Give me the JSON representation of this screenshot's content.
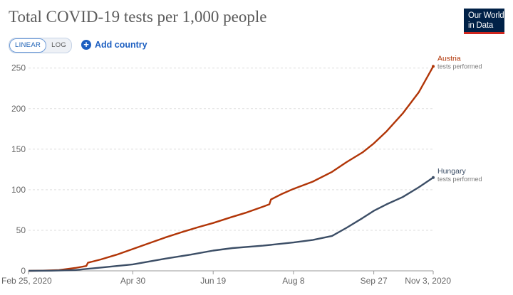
{
  "header": {
    "title": "Total COVID-19 tests per 1,000 people",
    "logo_line1": "Our World",
    "logo_line2": "in Data"
  },
  "controls": {
    "linear_label": "LINEAR",
    "log_label": "LOG",
    "add_country_label": "Add country"
  },
  "colors": {
    "austria": "#b13507",
    "hungary": "#3c4e66",
    "grid": "#dddddd",
    "axis": "#999999"
  },
  "chart_data": {
    "type": "line",
    "title": "Total COVID-19 tests per 1,000 people",
    "x_tick_labels": [
      "Feb 25, 2020",
      "Apr 30",
      "Jun 19",
      "Aug 8",
      "Sep 27",
      "Nov 3, 2020"
    ],
    "x_tick_dates": [
      "2020-02-25",
      "2020-04-30",
      "2020-06-19",
      "2020-08-08",
      "2020-09-27",
      "2020-11-03"
    ],
    "xlim": [
      "2020-02-25",
      "2020-11-03"
    ],
    "y_ticks": [
      0,
      50,
      100,
      150,
      200,
      250
    ],
    "ylim": [
      0,
      255
    ],
    "grid": "horizontal dashed",
    "legend": "end-of-line labels",
    "series": [
      {
        "name": "Austria",
        "sublabel": "tests performed",
        "color": "#b13507",
        "points": [
          [
            "2020-02-25",
            0
          ],
          [
            "2020-03-05",
            0.3
          ],
          [
            "2020-03-15",
            1
          ],
          [
            "2020-03-25",
            3.5
          ],
          [
            "2020-04-01",
            6
          ],
          [
            "2020-04-02",
            10
          ],
          [
            "2020-04-10",
            14
          ],
          [
            "2020-04-20",
            20
          ],
          [
            "2020-04-30",
            27
          ],
          [
            "2020-05-10",
            34
          ],
          [
            "2020-05-20",
            41
          ],
          [
            "2020-05-31",
            48
          ],
          [
            "2020-06-10",
            54
          ],
          [
            "2020-06-19",
            59
          ],
          [
            "2020-06-30",
            66
          ],
          [
            "2020-07-10",
            72
          ],
          [
            "2020-07-20",
            79
          ],
          [
            "2020-07-24",
            82
          ],
          [
            "2020-07-25",
            88
          ],
          [
            "2020-08-01",
            95
          ],
          [
            "2020-08-08",
            101
          ],
          [
            "2020-08-20",
            110
          ],
          [
            "2020-09-01",
            122
          ],
          [
            "2020-09-10",
            134
          ],
          [
            "2020-09-20",
            146
          ],
          [
            "2020-09-27",
            157
          ],
          [
            "2020-10-05",
            172
          ],
          [
            "2020-10-15",
            194
          ],
          [
            "2020-10-25",
            220
          ],
          [
            "2020-11-03",
            252
          ]
        ]
      },
      {
        "name": "Hungary",
        "sublabel": "tests performed",
        "color": "#3c4e66",
        "points": [
          [
            "2020-02-25",
            0
          ],
          [
            "2020-03-10",
            0.2
          ],
          [
            "2020-03-25",
            1
          ],
          [
            "2020-04-10",
            4
          ],
          [
            "2020-04-30",
            8
          ],
          [
            "2020-05-20",
            15
          ],
          [
            "2020-06-05",
            20
          ],
          [
            "2020-06-19",
            25
          ],
          [
            "2020-07-01",
            28
          ],
          [
            "2020-07-20",
            31
          ],
          [
            "2020-08-08",
            35
          ],
          [
            "2020-08-20",
            38
          ],
          [
            "2020-09-01",
            43
          ],
          [
            "2020-09-10",
            53
          ],
          [
            "2020-09-20",
            65
          ],
          [
            "2020-09-27",
            74
          ],
          [
            "2020-10-05",
            82
          ],
          [
            "2020-10-15",
            91
          ],
          [
            "2020-10-25",
            103
          ],
          [
            "2020-11-03",
            115
          ]
        ]
      }
    ]
  }
}
